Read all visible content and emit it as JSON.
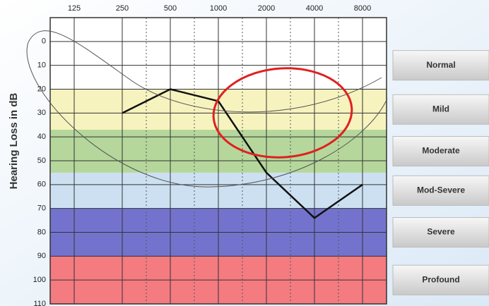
{
  "chart_data": {
    "type": "line",
    "y_label": "Hearing Loss in dB",
    "categories": [
      "125",
      "250",
      "500",
      "1000",
      "2000",
      "4000",
      "8000"
    ],
    "values": [
      null,
      30,
      20,
      25,
      55,
      74,
      60
    ],
    "color": "#111111",
    "ylim": [
      -10,
      110
    ],
    "y_reversed": true,
    "yticks": [
      0,
      10,
      20,
      30,
      40,
      50,
      60,
      70,
      80,
      90,
      100,
      110
    ],
    "grid": true,
    "bands": [
      {
        "label": "Normal",
        "from": -10,
        "to": 20
      },
      {
        "label": "Mild",
        "from": 20,
        "to": 37,
        "color": "#f4f1b4"
      },
      {
        "label": "Moderate",
        "from": 37,
        "to": 55,
        "color": "#a8d08a"
      },
      {
        "label": "Mod-Severe",
        "from": 55,
        "to": 70,
        "color": "#c3daef"
      },
      {
        "label": "Severe",
        "from": 70,
        "to": 90,
        "color": "#5b5bc6"
      },
      {
        "label": "Profound",
        "from": 90,
        "to": 110,
        "color": "#f2646a"
      }
    ]
  }
}
